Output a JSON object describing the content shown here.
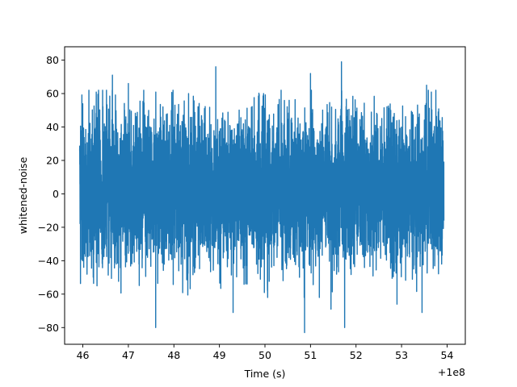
{
  "chart_data": {
    "type": "line",
    "title": "",
    "xlabel": "Time (s)",
    "ylabel": "whitened-noise",
    "x_offset_text": "+1e8",
    "xlim": [
      45.6,
      54.4
    ],
    "ylim": [
      -90,
      88
    ],
    "x_ticks": [
      46,
      47,
      48,
      49,
      50,
      51,
      52,
      53,
      54
    ],
    "x_tick_labels": [
      "46",
      "47",
      "48",
      "49",
      "50",
      "51",
      "52",
      "53",
      "54"
    ],
    "y_ticks": [
      -80,
      -60,
      -40,
      -20,
      0,
      20,
      40,
      60,
      80
    ],
    "y_tick_labels": [
      "−80",
      "−60",
      "−40",
      "−20",
      "0",
      "20",
      "40",
      "60",
      "80"
    ],
    "grid": false,
    "legend": "none",
    "series": [
      {
        "color": "#1f77b4",
        "x_range": [
          45.93,
          53.93
        ],
        "typical_band": [
          -40,
          45
        ],
        "extremes": [
          {
            "x": 46.65,
            "y": 71
          },
          {
            "x": 47.0,
            "y": 66
          },
          {
            "x": 47.6,
            "y": -80
          },
          {
            "x": 48.92,
            "y": 76
          },
          {
            "x": 49.3,
            "y": -71
          },
          {
            "x": 50.87,
            "y": -83
          },
          {
            "x": 51.0,
            "y": 72
          },
          {
            "x": 51.45,
            "y": -69
          },
          {
            "x": 51.68,
            "y": 79
          },
          {
            "x": 51.75,
            "y": -80
          },
          {
            "x": 52.9,
            "y": -66
          },
          {
            "x": 53.45,
            "y": -71
          },
          {
            "x": 53.55,
            "y": 65
          }
        ]
      }
    ]
  }
}
